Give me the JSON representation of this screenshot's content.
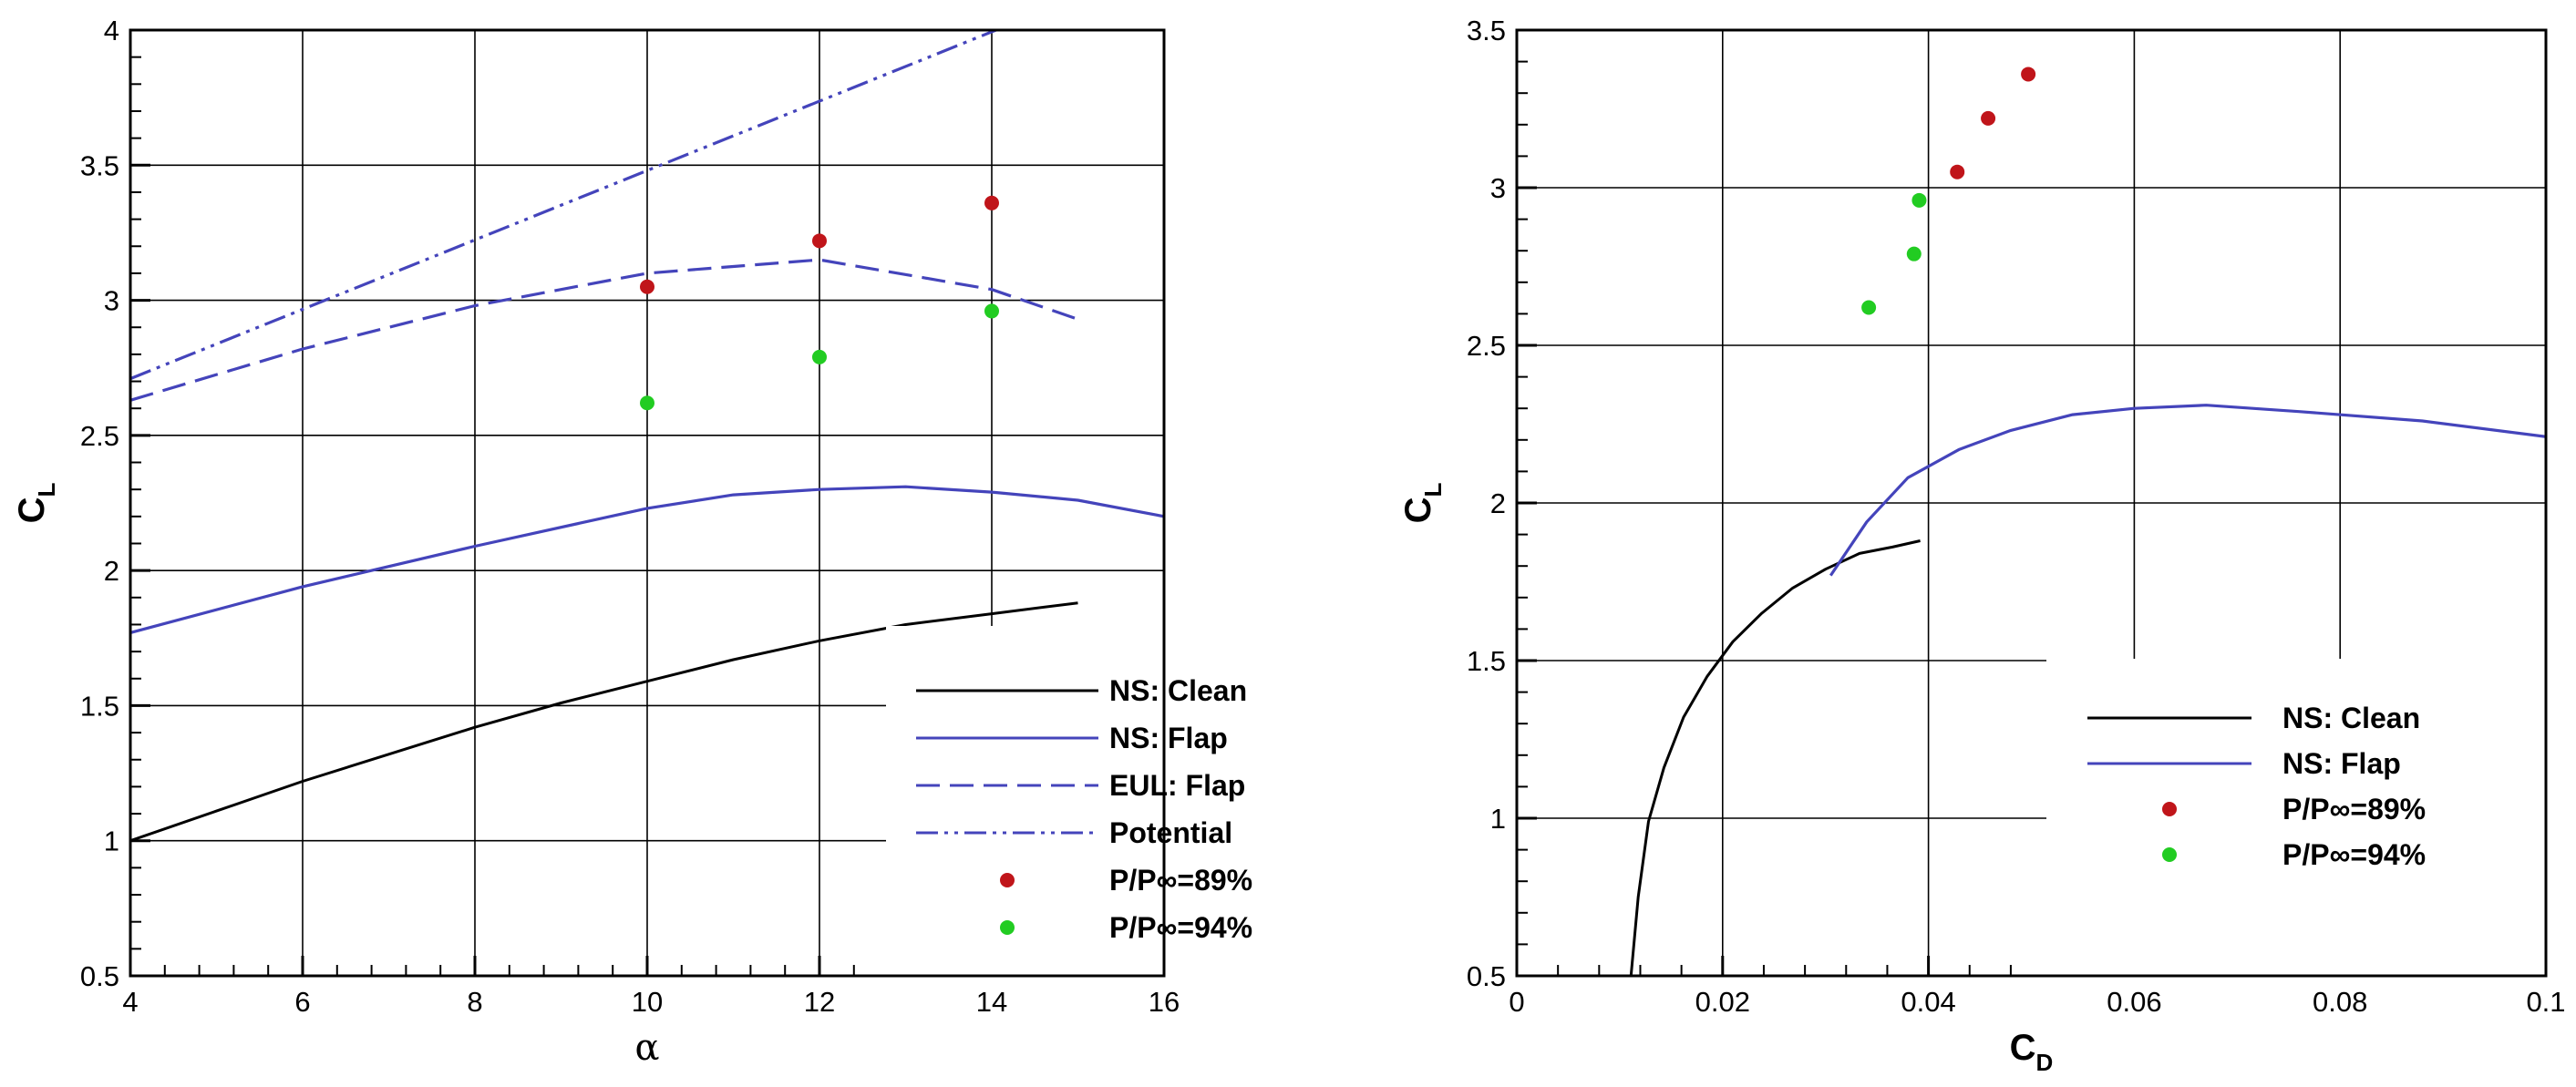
{
  "colors": {
    "clean": "#000000",
    "flap": "#4444bb",
    "p89": "#c0151a",
    "p94": "#22cc22",
    "grid": "#000000",
    "background": "#ffffff"
  },
  "chart_data": [
    {
      "type": "line",
      "xlabel": "α",
      "ylabel": {
        "base": "C",
        "sub": "L"
      },
      "xlim": [
        4,
        16
      ],
      "ylim": [
        0.5,
        4
      ],
      "xticks": [
        "4",
        "6",
        "8",
        "10",
        "12",
        "14",
        "16"
      ],
      "yticks": [
        "0.5",
        "1",
        "1.5",
        "2",
        "2.5",
        "3",
        "3.5",
        "4"
      ],
      "grid": true,
      "legend_position": "bottom-right",
      "series": [
        {
          "name": "NS: Clean",
          "style": "solid",
          "color": "#000000",
          "x": [
            4,
            5,
            6,
            7,
            8,
            9,
            10,
            11,
            12,
            13,
            14,
            15
          ],
          "y": [
            1.0,
            1.11,
            1.22,
            1.32,
            1.42,
            1.51,
            1.59,
            1.67,
            1.74,
            1.8,
            1.84,
            1.88
          ]
        },
        {
          "name": "NS: Flap",
          "style": "solid",
          "color": "#4444bb",
          "x": [
            4,
            6,
            8,
            10,
            11,
            12,
            13,
            14,
            15,
            16
          ],
          "y": [
            1.77,
            1.94,
            2.09,
            2.23,
            2.28,
            2.3,
            2.31,
            2.29,
            2.26,
            2.2
          ]
        },
        {
          "name": "EUL: Flap",
          "style": "dashed",
          "color": "#4444bb",
          "x": [
            4,
            6,
            8,
            10,
            12,
            14,
            15
          ],
          "y": [
            2.63,
            2.82,
            2.98,
            3.1,
            3.15,
            3.04,
            2.93
          ]
        },
        {
          "name": "Potential",
          "style": "dashdotdot",
          "color": "#4444bb",
          "x": [
            4,
            14.05
          ],
          "y": [
            2.71,
            4.0
          ]
        },
        {
          "name": "P/P∞=89%",
          "style": "markers",
          "color": "#c0151a",
          "x": [
            10,
            12,
            14
          ],
          "y": [
            3.05,
            3.22,
            3.36
          ]
        },
        {
          "name": "P/P∞=94%",
          "style": "markers",
          "color": "#22cc22",
          "x": [
            10,
            12,
            14
          ],
          "y": [
            2.62,
            2.79,
            2.96
          ]
        }
      ]
    },
    {
      "type": "line",
      "xlabel": {
        "base": "C",
        "sub": "D"
      },
      "ylabel": {
        "base": "C",
        "sub": "L"
      },
      "xlim": [
        0,
        0.1
      ],
      "ylim": [
        0.5,
        3.5
      ],
      "xticks": [
        "0",
        "0.02",
        "0.04",
        "0.06",
        "0.08",
        "0.1"
      ],
      "yticks": [
        "0.5",
        "1",
        "1.5",
        "2",
        "2.5",
        "3",
        "3.5"
      ],
      "grid": true,
      "legend_position": "bottom-right",
      "series": [
        {
          "name": "NS: Clean",
          "style": "solid",
          "color": "#000000",
          "x": [
            0.0111,
            0.0118,
            0.0128,
            0.0143,
            0.0162,
            0.0185,
            0.021,
            0.0238,
            0.0268,
            0.03,
            0.0333,
            0.0365,
            0.0392
          ],
          "y": [
            0.5,
            0.75,
            0.99,
            1.16,
            1.32,
            1.45,
            1.56,
            1.65,
            1.73,
            1.79,
            1.84,
            1.86,
            1.88
          ]
        },
        {
          "name": "NS: Flap",
          "style": "solid",
          "color": "#4444bb",
          "x": [
            0.0305,
            0.034,
            0.038,
            0.043,
            0.048,
            0.054,
            0.06,
            0.067,
            0.076,
            0.088,
            0.1
          ],
          "y": [
            1.77,
            1.94,
            2.08,
            2.17,
            2.23,
            2.28,
            2.3,
            2.31,
            2.29,
            2.26,
            2.21
          ]
        },
        {
          "name": "P/P∞=89%",
          "style": "markers",
          "color": "#c0151a",
          "x": [
            0.0428,
            0.0458,
            0.0497
          ],
          "y": [
            3.05,
            3.22,
            3.36
          ]
        },
        {
          "name": "P/P∞=94%",
          "style": "markers",
          "color": "#22cc22",
          "x": [
            0.0342,
            0.0386,
            0.0391
          ],
          "y": [
            2.62,
            2.79,
            2.96
          ]
        }
      ]
    }
  ]
}
